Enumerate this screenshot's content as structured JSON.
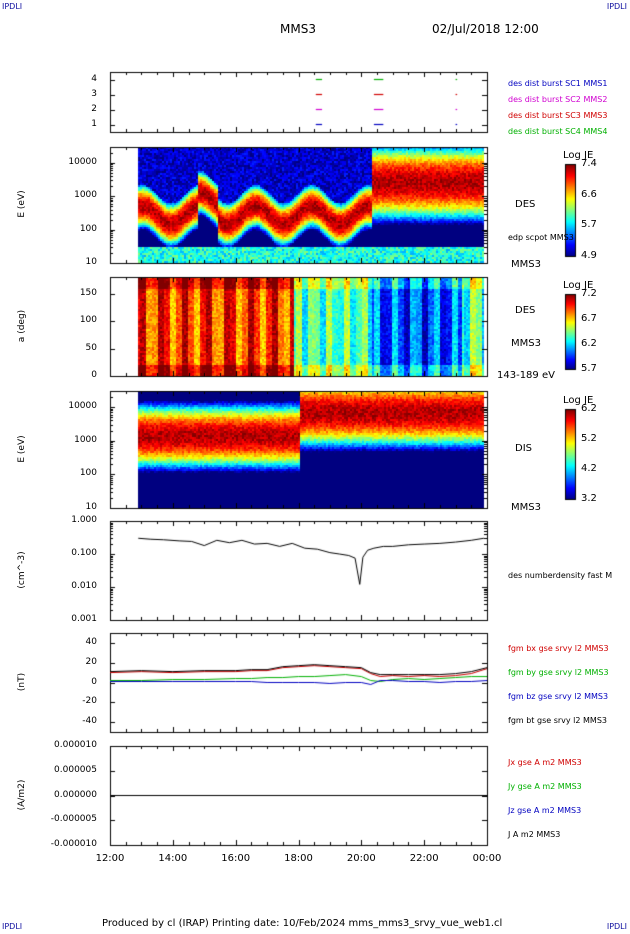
{
  "corner_marks": {
    "top_left": "IPDLI",
    "top_right": "IPDLI",
    "bottom_left": "IPDLI",
    "bottom_right": "IPDLI"
  },
  "header": {
    "spacecraft": "MMS3",
    "datetime": "02/Jul/2018 12:00"
  },
  "footer": {
    "produced_by": "Produced by cl (IRAP)",
    "printing_date": "Printing date: 10/Feb/2024",
    "filename": "mms_mms3_srvy_vue_web1.cl"
  },
  "colors": {
    "red": "#d00000",
    "magenta": "#d000d0",
    "blue": "#0000c0",
    "green": "#00b000",
    "black": "#000000"
  },
  "chart_data": [
    {
      "type": "line",
      "panel": "burst",
      "ylim": [
        0.5,
        4.5
      ],
      "yticks": [
        "1",
        "2",
        "3",
        "4"
      ],
      "legend": [
        {
          "name": "des dist burst SC1 MMS1",
          "color": "#0000c0"
        },
        {
          "name": "des dist burst SC2 MMS2",
          "color": "#d000d0"
        },
        {
          "name": "des dist burst SC3 MMS3",
          "color": "#d00000"
        },
        {
          "name": "des dist burst SC4 MMS4",
          "color": "#00b000"
        }
      ],
      "intervals": [
        {
          "level": 4,
          "color": "#00b000",
          "spans": [
            [
              18.55,
              18.75
            ],
            [
              20.4,
              20.7
            ],
            [
              23.0,
              23.05
            ]
          ]
        },
        {
          "level": 3,
          "color": "#d00000",
          "spans": [
            [
              18.55,
              18.75
            ],
            [
              20.4,
              20.7
            ],
            [
              23.0,
              23.05
            ]
          ]
        },
        {
          "level": 2,
          "color": "#d000d0",
          "spans": [
            [
              18.55,
              18.75
            ],
            [
              20.4,
              20.7
            ],
            [
              23.0,
              23.05
            ]
          ]
        },
        {
          "level": 1,
          "color": "#0000c0",
          "spans": [
            [
              18.55,
              18.75
            ],
            [
              20.4,
              20.7
            ],
            [
              23.0,
              23.05
            ]
          ]
        }
      ]
    },
    {
      "type": "heatmap",
      "panel": "des_energy",
      "ylabel": "E (eV)",
      "ylog": true,
      "ylim": [
        10,
        30000
      ],
      "yticks": [
        "10",
        "100",
        "1000",
        "10000"
      ],
      "label": "DES",
      "sublabel": "edp scpot MMS3",
      "instrument": "MMS3",
      "colorbar": {
        "title": "Log JE",
        "ticks": [
          "7.4",
          "6.6",
          "5.7",
          "4.9"
        ]
      }
    },
    {
      "type": "heatmap",
      "panel": "des_pitch",
      "ylabel": "a (deg)",
      "ylim": [
        0,
        180
      ],
      "yticks": [
        "0",
        "50",
        "100",
        "150"
      ],
      "label": "DES",
      "instrument": "MMS3",
      "energy_range": "143-189 eV",
      "colorbar": {
        "title": "Log JE",
        "ticks": [
          "7.2",
          "6.7",
          "6.2",
          "5.7"
        ]
      }
    },
    {
      "type": "heatmap",
      "panel": "dis_energy",
      "ylabel": "E (eV)",
      "ylog": true,
      "ylim": [
        10,
        30000
      ],
      "yticks": [
        "10",
        "100",
        "1000",
        "10000"
      ],
      "label": "DIS",
      "instrument": "MMS3",
      "colorbar": {
        "title": "Log JE",
        "ticks": [
          "6.2",
          "5.2",
          "4.2",
          "3.2"
        ]
      }
    },
    {
      "type": "line",
      "panel": "density",
      "ylabel": "(cm^-3)",
      "ylog": true,
      "ylim": [
        0.001,
        1.0
      ],
      "yticks": [
        "0.001",
        "0.010",
        "0.100",
        "1.000"
      ],
      "series": [
        {
          "name": "des numberdensity fast M",
          "color": "#000000",
          "x": [
            12.9,
            13.3,
            13.7,
            14.2,
            14.6,
            15.0,
            15.4,
            15.8,
            16.2,
            16.6,
            17.0,
            17.4,
            17.8,
            18.2,
            18.6,
            19.0,
            19.3,
            19.6,
            19.8,
            19.95,
            20.05,
            20.2,
            20.4,
            20.7,
            21.0,
            21.5,
            22.0,
            22.5,
            23.0,
            23.5,
            23.9
          ],
          "y": [
            0.3,
            0.28,
            0.27,
            0.25,
            0.24,
            0.18,
            0.26,
            0.22,
            0.26,
            0.2,
            0.21,
            0.17,
            0.21,
            0.15,
            0.14,
            0.11,
            0.1,
            0.09,
            0.075,
            0.012,
            0.08,
            0.13,
            0.15,
            0.17,
            0.17,
            0.19,
            0.2,
            0.21,
            0.23,
            0.26,
            0.3
          ]
        }
      ]
    },
    {
      "type": "line",
      "panel": "fgm",
      "ylabel": "(nT)",
      "ylim": [
        -50,
        50
      ],
      "yticks": [
        "-40",
        "-20",
        "0",
        "20",
        "40"
      ],
      "x": [
        12.0,
        13.0,
        14.0,
        15.0,
        16.0,
        16.5,
        17.0,
        17.5,
        18.0,
        18.5,
        19.0,
        19.5,
        20.0,
        20.3,
        20.6,
        21.0,
        21.5,
        22.0,
        22.5,
        23.0,
        23.5,
        24.0
      ],
      "series": [
        {
          "name": "fgm bx gse srvy l2 MMS3",
          "color": "#d00000",
          "values": [
            10,
            11,
            10,
            11,
            11,
            12,
            12,
            15,
            16,
            17,
            16,
            15,
            14,
            9,
            6,
            7,
            6,
            7,
            6,
            7,
            9,
            14
          ]
        },
        {
          "name": "fgm by gse srvy l2 MMS3",
          "color": "#00b000",
          "values": [
            2,
            2,
            3,
            3,
            4,
            4,
            5,
            5,
            6,
            6,
            7,
            8,
            6,
            2,
            1,
            3,
            4,
            3,
            4,
            5,
            6,
            6
          ]
        },
        {
          "name": "fgm bz gse srvy l2 MMS3",
          "color": "#0000c0",
          "values": [
            1,
            1,
            1,
            1,
            1,
            1,
            0,
            0,
            0,
            0,
            -1,
            0,
            0,
            -2,
            2,
            2,
            1,
            1,
            0,
            1,
            1,
            2
          ]
        },
        {
          "name": "fgm bt gse srvy l2 MMS3",
          "color": "#000000",
          "values": [
            11,
            12,
            11,
            12,
            12,
            13,
            13,
            16,
            17,
            18,
            17,
            16,
            15,
            10,
            8,
            8,
            8,
            8,
            8,
            9,
            11,
            15
          ]
        }
      ]
    },
    {
      "type": "line",
      "panel": "current",
      "ylabel": "(A/m2)",
      "ylim": [
        -1e-05,
        1e-05
      ],
      "yticks": [
        "-0.000010",
        "-0.000005",
        "0.000000",
        "0.000005",
        "0.000010"
      ],
      "series": [
        {
          "name": "Jx gse A m2 MMS3",
          "color": "#d00000"
        },
        {
          "name": "Jy gse A m2 MMS3",
          "color": "#00b000"
        },
        {
          "name": "Jz gse A m2 MMS3",
          "color": "#0000c0"
        },
        {
          "name": "J A m2 MMS3",
          "color": "#000000"
        }
      ],
      "x": [
        12.0,
        24.0
      ],
      "values": [
        0,
        0
      ]
    }
  ],
  "time_axis": {
    "ticks": [
      "12:00",
      "14:00",
      "16:00",
      "18:00",
      "20:00",
      "22:00",
      "00:00"
    ],
    "start": 12,
    "end": 24
  }
}
